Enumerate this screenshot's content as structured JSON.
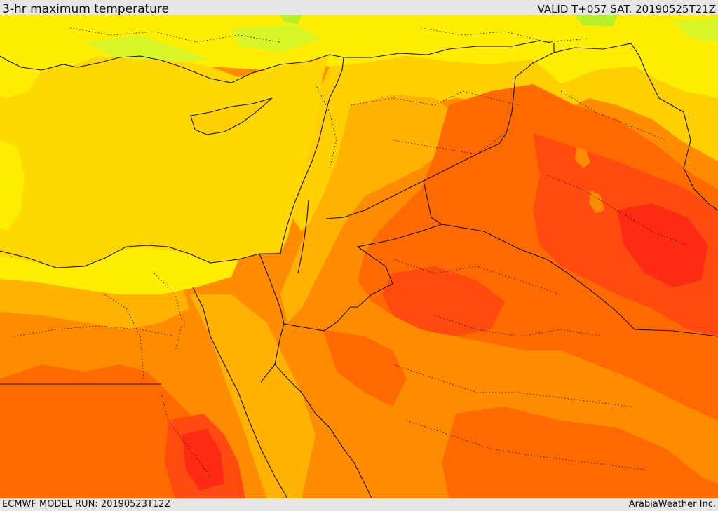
{
  "header": {
    "title": "3-hr maximum temperature",
    "valid": "VALID T+057 SAT. 20190525T21Z"
  },
  "footer": {
    "model_run": "ECMWF MODEL RUN: 20190523T12Z",
    "credit": "ArabiaWeather Inc."
  },
  "colors": {
    "frame": "#e6e6e6",
    "sea": "#ffd800",
    "band_green": "#b8f028",
    "band_lightgreen": "#d8f528",
    "band_yellow": "#ffee00",
    "band_gold": "#ffd000",
    "band_amber": "#ffb300",
    "band_orange": "#ff8c00",
    "band_darkorange": "#ff6a00",
    "band_redorange": "#ff4a10",
    "band_red": "#ff2a14",
    "border_line": "#111111"
  }
}
